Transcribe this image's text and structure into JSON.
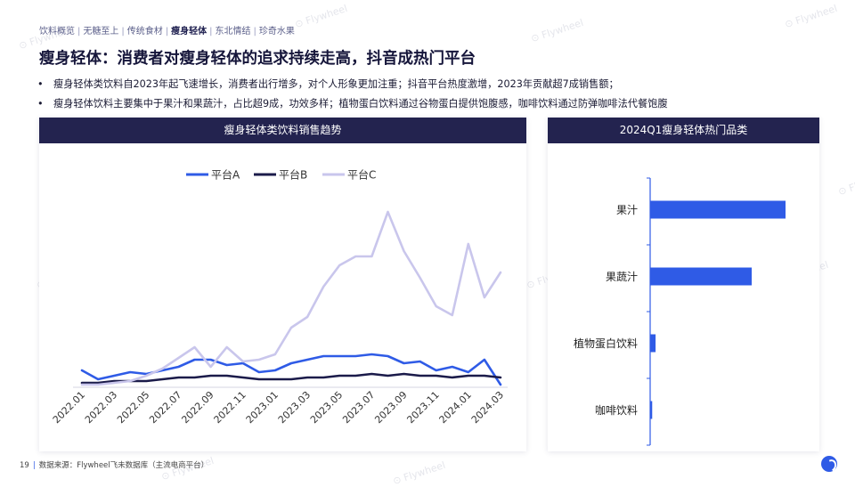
{
  "breadcrumb": {
    "items": [
      "饮料概览",
      "无糖至上",
      "传统食材",
      "瘦身轻体",
      "东北情结",
      "珍奇水果"
    ],
    "active": "瘦身轻体"
  },
  "page_title": "瘦身轻体：消费者对瘦身轻体的追求持续走高，抖音成热门平台",
  "bullets": [
    "瘦身轻体类饮料自2023年起飞速增长，消费者出行增多，对个人形象更加注重；抖音平台热度激增，2023年贡献超7成销售额；",
    "瘦身轻体饮料主要集中于果汁和果蔬汁，占比超9成，功效多样；植物蛋白饮料通过谷物蛋白提供饱腹感，咖啡饮料通过防弹咖啡法代餐饱腹"
  ],
  "bullet_glyph": "•",
  "footer": {
    "page_number": "19",
    "source": "数据来源：Flywheel飞未数据库（主流电商平台）"
  },
  "watermark": "Flywheel",
  "colors": {
    "navy": "#23234f",
    "platform_a": "#2f5be6",
    "platform_b": "#1b1b4a",
    "platform_c": "#c9c6ec",
    "bar": "#2f5be6"
  },
  "chart_data": [
    {
      "type": "line",
      "title": "瘦身轻体类饮料销售趋势",
      "xlabel": "",
      "ylabel": "",
      "legend_position": "top",
      "grid": false,
      "y_axis_visible": false,
      "ylim": [
        0,
        100
      ],
      "x": [
        "2022.01",
        "2022.02",
        "2022.03",
        "2022.04",
        "2022.05",
        "2022.06",
        "2022.07",
        "2022.08",
        "2022.09",
        "2022.10",
        "2022.11",
        "2022.12",
        "2023.01",
        "2023.02",
        "2023.03",
        "2023.04",
        "2023.05",
        "2023.06",
        "2023.07",
        "2023.08",
        "2023.09",
        "2023.10",
        "2023.11",
        "2023.12",
        "2024.01",
        "2024.02",
        "2024.03"
      ],
      "x_tick_labels": [
        "2022.01",
        "2022.03",
        "2022.05",
        "2022.07",
        "2022.09",
        "2022.11",
        "2023.01",
        "2023.03",
        "2023.05",
        "2023.07",
        "2023.09",
        "2023.11",
        "2024.01",
        "2024.03"
      ],
      "series": [
        {
          "name": "平台A",
          "values": [
            8,
            3,
            5,
            7,
            6,
            8,
            10,
            14,
            14,
            11,
            12,
            7,
            8,
            12,
            14,
            16,
            16,
            16,
            17,
            16,
            12,
            13,
            8,
            10,
            7,
            14,
            0
          ]
        },
        {
          "name": "平台B",
          "values": [
            1,
            1,
            2,
            2,
            2,
            3,
            4,
            4,
            5,
            5,
            4,
            3,
            3,
            3,
            4,
            4,
            5,
            5,
            6,
            5,
            6,
            5,
            5,
            4,
            5,
            5,
            4
          ]
        },
        {
          "name": "平台C",
          "values": [
            0,
            0,
            1,
            2,
            5,
            9,
            15,
            21,
            10,
            21,
            13,
            14,
            17,
            32,
            38,
            55,
            67,
            72,
            72,
            97,
            75,
            60,
            44,
            39,
            79,
            49,
            63
          ]
        }
      ]
    },
    {
      "type": "bar",
      "orientation": "horizontal",
      "title": "2024Q1瘦身轻体热门品类",
      "categories": [
        "果汁",
        "果蔬汁",
        "植物蛋白饮料",
        "咖啡饮料"
      ],
      "values": [
        100,
        75,
        4,
        1.5
      ],
      "xlabel": "",
      "ylabel": "",
      "x_axis_visible": false
    }
  ]
}
